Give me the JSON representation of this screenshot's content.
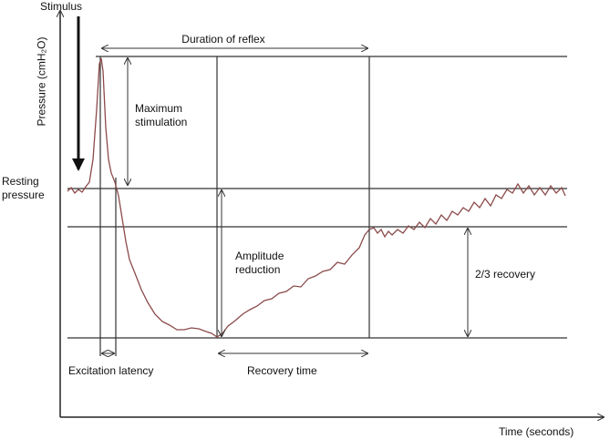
{
  "labels": {
    "stimulus": "Stimulus",
    "y_axis": "Pressure (cmH₂O)",
    "duration": "Duration of reflex",
    "maximum": "Maximum stimulation",
    "resting": "Resting pressure",
    "amplitude": "Amplitude reduction",
    "recovery_two_thirds": "2/3 recovery",
    "latency": "Excitation latency",
    "recovery_time": "Recovery time",
    "x_axis": "Time (seconds)"
  }
}
